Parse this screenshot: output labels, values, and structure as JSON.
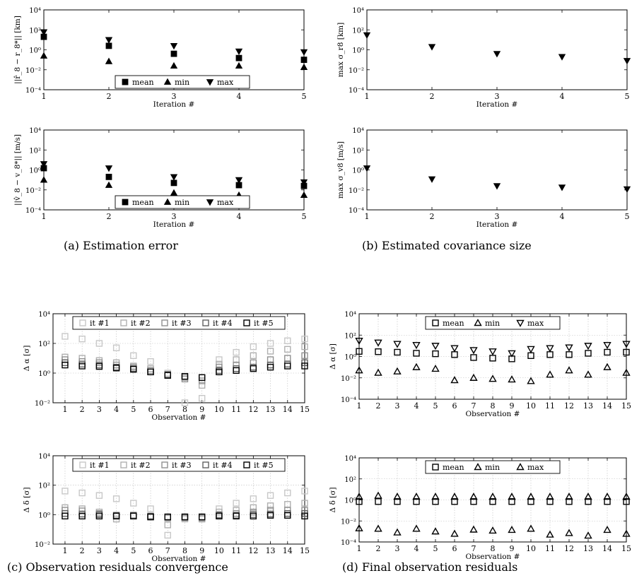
{
  "captions": {
    "a": "(a) Estimation error",
    "b": "(b) Estimated covariance size",
    "c": "(c) Observation residuals convergence",
    "d": "(d) Final observation residuals"
  },
  "chart_data": [
    {
      "id": "pos-error",
      "type": "scatter",
      "xlabel": "Iteration #",
      "ylabel": "||r̂_8 − r_8*|| [km]",
      "log_y": true,
      "xlim": [
        1,
        5
      ],
      "ylim": [
        0.0001,
        10000
      ],
      "x_ticks": [
        1,
        2,
        3,
        4,
        5
      ],
      "y_ticks": [
        0.0001,
        0.01,
        1,
        100,
        10000
      ],
      "y_tick_labels": [
        "10⁻⁴",
        "10⁻²",
        "10⁰",
        "10²",
        "10⁴"
      ],
      "grid": false,
      "legend": "bottom-center",
      "x": [
        1,
        2,
        3,
        4,
        5
      ],
      "series": [
        {
          "name": "mean",
          "marker": "square",
          "values": [
            20,
            2.5,
            0.4,
            0.15,
            0.1
          ]
        },
        {
          "name": "min",
          "marker": "triangle-up",
          "values": [
            0.25,
            0.07,
            0.025,
            0.025,
            0.018
          ]
        },
        {
          "name": "max",
          "marker": "triangle-down",
          "values": [
            60,
            10,
            2.5,
            0.7,
            0.6
          ]
        }
      ]
    },
    {
      "id": "pos-sigma",
      "type": "scatter",
      "xlabel": "Iteration #",
      "ylabel": "max σ_r8 [km]",
      "log_y": true,
      "xlim": [
        1,
        5
      ],
      "ylim": [
        0.0001,
        10000
      ],
      "x_ticks": [
        1,
        2,
        3,
        4,
        5
      ],
      "y_ticks": [
        0.0001,
        0.01,
        1,
        100,
        10000
      ],
      "y_tick_labels": [
        "10⁻⁴",
        "10⁻²",
        "10⁰",
        "10²",
        "10⁴"
      ],
      "grid": false,
      "x": [
        1,
        2,
        3,
        4,
        5
      ],
      "series": [
        {
          "name": "",
          "marker": "triangle-down",
          "values": [
            30,
            2,
            0.4,
            0.2,
            0.08
          ]
        }
      ]
    },
    {
      "id": "vel-error",
      "type": "scatter",
      "xlabel": "Iteration #",
      "ylabel": "||v̂_8 − v_8*|| [m/s]",
      "log_y": true,
      "xlim": [
        1,
        5
      ],
      "ylim": [
        0.0001,
        10000
      ],
      "x_ticks": [
        1,
        2,
        3,
        4,
        5
      ],
      "y_ticks": [
        0.0001,
        0.01,
        1,
        100,
        10000
      ],
      "y_tick_labels": [
        "10⁻⁴",
        "10⁻²",
        "10⁰",
        "10²",
        "10⁴"
      ],
      "grid": false,
      "legend": "bottom-center",
      "x": [
        1,
        2,
        3,
        4,
        5
      ],
      "series": [
        {
          "name": "mean",
          "marker": "square",
          "values": [
            1.5,
            0.2,
            0.05,
            0.03,
            0.025
          ]
        },
        {
          "name": "min",
          "marker": "triangle-up",
          "values": [
            0.1,
            0.03,
            0.005,
            0.003,
            0.003
          ]
        },
        {
          "name": "max",
          "marker": "triangle-down",
          "values": [
            4,
            1.5,
            0.2,
            0.1,
            0.06
          ]
        }
      ]
    },
    {
      "id": "vel-sigma",
      "type": "scatter",
      "xlabel": "Iteration #",
      "ylabel": "max σ_v8 [m/s]",
      "log_y": true,
      "xlim": [
        1,
        5
      ],
      "ylim": [
        0.0001,
        10000
      ],
      "x_ticks": [
        1,
        2,
        3,
        4,
        5
      ],
      "y_ticks": [
        0.0001,
        0.01,
        1,
        100,
        10000
      ],
      "y_tick_labels": [
        "10⁻⁴",
        "10⁻²",
        "10⁰",
        "10²",
        "10⁴"
      ],
      "grid": false,
      "x": [
        1,
        2,
        3,
        4,
        5
      ],
      "series": [
        {
          "name": "",
          "marker": "triangle-down",
          "values": [
            1.5,
            0.12,
            0.025,
            0.018,
            0.012
          ]
        }
      ]
    },
    {
      "id": "alpha-convergence",
      "type": "scatter",
      "xlabel": "Observation #",
      "ylabel": "Δ α [σ]",
      "log_y": true,
      "xlim": [
        0.3,
        15
      ],
      "ylim": [
        0.01,
        10000
      ],
      "x_ticks": [
        1,
        2,
        3,
        4,
        5,
        6,
        7,
        8,
        9,
        10,
        11,
        12,
        13,
        14,
        15
      ],
      "y_ticks": [
        0.01,
        1,
        100,
        10000
      ],
      "y_tick_labels": [
        "10⁻²",
        "10⁰",
        "10²",
        "10⁴"
      ],
      "grid": true,
      "legend": "top-center",
      "x": [
        1,
        2,
        3,
        4,
        5,
        6,
        7,
        8,
        9,
        10,
        11,
        12,
        13,
        14,
        15
      ],
      "series": [
        {
          "name": "it #1",
          "marker": "square-open",
          "color": "#c8c8c8",
          "values": [
            300,
            200,
            100,
            50,
            15,
            6,
            1,
            0.01,
            0.02,
            8,
            25,
            60,
            100,
            150,
            200
          ]
        },
        {
          "name": "it #2",
          "marker": "square-open",
          "color": "#b0b0b0",
          "values": [
            12,
            10,
            7,
            5,
            3,
            2,
            0.8,
            0.5,
            0.15,
            4,
            8,
            15,
            30,
            40,
            60
          ]
        },
        {
          "name": "it #3",
          "marker": "square-open",
          "color": "#909090",
          "values": [
            8,
            6,
            5,
            3.5,
            2.5,
            1.5,
            0.7,
            0.4,
            0.3,
            2.5,
            3.5,
            5,
            8,
            10,
            15
          ]
        },
        {
          "name": "it #4",
          "marker": "square-open",
          "color": "#606060",
          "values": [
            5,
            4,
            3.5,
            2.5,
            2,
            1.2,
            0.8,
            0.6,
            0.5,
            1.5,
            2,
            2.5,
            3.5,
            4,
            5
          ]
        },
        {
          "name": "it #5",
          "marker": "square-open",
          "color": "#000000",
          "values": [
            3.5,
            3,
            2.8,
            2.2,
            1.8,
            1.2,
            0.7,
            0.6,
            0.5,
            1.2,
            1.5,
            2,
            2.5,
            3,
            3
          ]
        }
      ]
    },
    {
      "id": "alpha-final",
      "type": "scatter",
      "xlabel": "Observation #",
      "ylabel": "Δ α [σ]",
      "log_y": true,
      "xlim": [
        1,
        15
      ],
      "ylim": [
        0.0001,
        10000
      ],
      "x_ticks": [
        1,
        2,
        3,
        4,
        5,
        6,
        7,
        8,
        9,
        10,
        11,
        12,
        13,
        14,
        15
      ],
      "y_ticks": [
        0.0001,
        0.01,
        1,
        100,
        10000
      ],
      "y_tick_labels": [
        "10⁻⁴",
        "10⁻²",
        "10⁰",
        "10²",
        "10⁴"
      ],
      "grid": true,
      "legend": "top-center",
      "x": [
        1,
        2,
        3,
        4,
        5,
        6,
        7,
        8,
        9,
        10,
        11,
        12,
        13,
        14,
        15
      ],
      "series": [
        {
          "name": "mean",
          "marker": "square-open",
          "values": [
            3,
            2.8,
            2.5,
            2,
            1.8,
            1.5,
            0.8,
            0.7,
            0.6,
            1.2,
            1.5,
            1.5,
            2,
            2.5,
            2.5
          ]
        },
        {
          "name": "min",
          "marker": "triangle-up-open",
          "values": [
            0.05,
            0.03,
            0.04,
            0.1,
            0.07,
            0.006,
            0.01,
            0.008,
            0.007,
            0.005,
            0.02,
            0.05,
            0.02,
            0.1,
            0.03
          ]
        },
        {
          "name": "max",
          "marker": "triangle-down-open",
          "values": [
            30,
            20,
            15,
            12,
            10,
            6,
            4,
            3,
            2,
            5,
            6,
            7,
            10,
            12,
            15
          ]
        }
      ]
    },
    {
      "id": "delta-convergence",
      "type": "scatter",
      "xlabel": "Observation #",
      "ylabel": "Δ δ [σ]",
      "log_y": true,
      "xlim": [
        0.3,
        15
      ],
      "ylim": [
        0.01,
        10000
      ],
      "x_ticks": [
        1,
        2,
        3,
        4,
        5,
        6,
        7,
        8,
        9,
        10,
        11,
        12,
        13,
        14,
        15
      ],
      "y_ticks": [
        0.01,
        1,
        100,
        10000
      ],
      "y_tick_labels": [
        "10⁻²",
        "10⁰",
        "10²",
        "10⁴"
      ],
      "grid": true,
      "legend": "top-center",
      "x": [
        1,
        2,
        3,
        4,
        5,
        6,
        7,
        8,
        9,
        10,
        11,
        12,
        13,
        14,
        15
      ],
      "series": [
        {
          "name": "it #1",
          "marker": "square-open",
          "color": "#c8c8c8",
          "values": [
            40,
            30,
            20,
            12,
            6,
            2.5,
            0.04,
            0.5,
            0.6,
            2.5,
            6,
            12,
            20,
            30,
            40
          ]
        },
        {
          "name": "it #2",
          "marker": "square-open",
          "color": "#b0b0b0",
          "values": [
            3,
            2.5,
            1.5,
            0.5,
            0.8,
            0.7,
            0.2,
            0.6,
            0.5,
            1.5,
            2,
            3,
            4,
            5,
            6
          ]
        },
        {
          "name": "it #3",
          "marker": "square-open",
          "color": "#909090",
          "values": [
            2,
            1.8,
            1.2,
            0.8,
            0.9,
            0.7,
            0.6,
            0.6,
            0.6,
            1,
            1.2,
            1.5,
            2,
            2,
            2
          ]
        },
        {
          "name": "it #4",
          "marker": "square-open",
          "color": "#606060",
          "values": [
            1.2,
            1.1,
            1,
            0.9,
            0.9,
            0.8,
            0.7,
            0.7,
            0.7,
            0.9,
            0.9,
            1,
            1.1,
            1.2,
            1.2
          ]
        },
        {
          "name": "it #5",
          "marker": "square-open",
          "color": "#000000",
          "values": [
            0.8,
            0.8,
            0.8,
            0.8,
            0.8,
            0.7,
            0.7,
            0.7,
            0.7,
            0.8,
            0.8,
            0.8,
            0.9,
            0.9,
            0.8
          ]
        }
      ]
    },
    {
      "id": "delta-final",
      "type": "scatter",
      "xlabel": "Observation #",
      "ylabel": "Δ δ [σ]",
      "log_y": true,
      "xlim": [
        1,
        15
      ],
      "ylim": [
        0.0001,
        10000
      ],
      "x_ticks": [
        1,
        2,
        3,
        4,
        5,
        6,
        7,
        8,
        9,
        10,
        11,
        12,
        13,
        14,
        15
      ],
      "y_ticks": [
        0.0001,
        0.01,
        1,
        100,
        10000
      ],
      "y_tick_labels": [
        "10⁻⁴",
        "10⁻²",
        "10⁰",
        "10²",
        "10⁴"
      ],
      "grid": true,
      "legend": "top-center",
      "x": [
        1,
        2,
        3,
        4,
        5,
        6,
        7,
        8,
        9,
        10,
        11,
        12,
        13,
        14,
        15
      ],
      "series": [
        {
          "name": "mean",
          "marker": "square-open",
          "values": [
            0.7,
            0.7,
            0.7,
            0.7,
            0.7,
            0.7,
            0.7,
            0.7,
            0.7,
            0.7,
            0.7,
            0.7,
            0.7,
            0.7,
            0.7
          ]
        },
        {
          "name": "min",
          "marker": "triangle-up-open",
          "values": [
            2,
            2.5,
            2,
            2,
            2,
            2,
            2,
            2,
            2,
            2,
            2,
            2,
            2,
            2,
            2
          ]
        },
        {
          "name": "max",
          "marker": "triangle-up-open",
          "values": [
            0.002,
            0.0018,
            0.0008,
            0.0018,
            0.001,
            0.0006,
            0.0015,
            0.0012,
            0.0014,
            0.0018,
            0.0005,
            0.0007,
            0.0004,
            0.0014,
            0.0006
          ]
        }
      ]
    }
  ]
}
